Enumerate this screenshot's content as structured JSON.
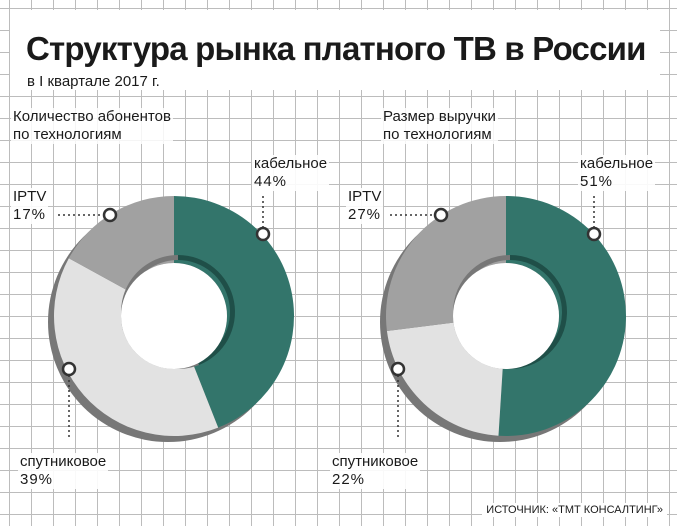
{
  "header": {
    "title": "Структура рынка платного ТВ в России",
    "subtitle": "в I квартале 2017 г."
  },
  "source": "ИСТОЧНИК: «ТМТ КОНСАЛТИНГ»",
  "colors": {
    "cable": "#33756b",
    "satellite": "#e2e2e2",
    "iptv": "#a1a1a1",
    "cable_dark": "#1f4f48",
    "gray_dark": "#777777"
  },
  "chart_data": [
    {
      "type": "pie",
      "variant": "donut",
      "title_lines": [
        "Количество абонентов",
        "по технологиям"
      ],
      "slices": [
        {
          "name": "кабельное",
          "value": 44,
          "label": "44%"
        },
        {
          "name": "спутниковое",
          "value": 39,
          "label": "39%"
        },
        {
          "name": "IPTV",
          "value": 17,
          "label": "17%"
        }
      ]
    },
    {
      "type": "pie",
      "variant": "donut",
      "title_lines": [
        "Размер выручки",
        "по технологиям"
      ],
      "slices": [
        {
          "name": "кабельное",
          "value": 51,
          "label": "51%"
        },
        {
          "name": "спутниковое",
          "value": 22,
          "label": "22%"
        },
        {
          "name": "IPTV",
          "value": 27,
          "label": "27%"
        }
      ]
    }
  ]
}
